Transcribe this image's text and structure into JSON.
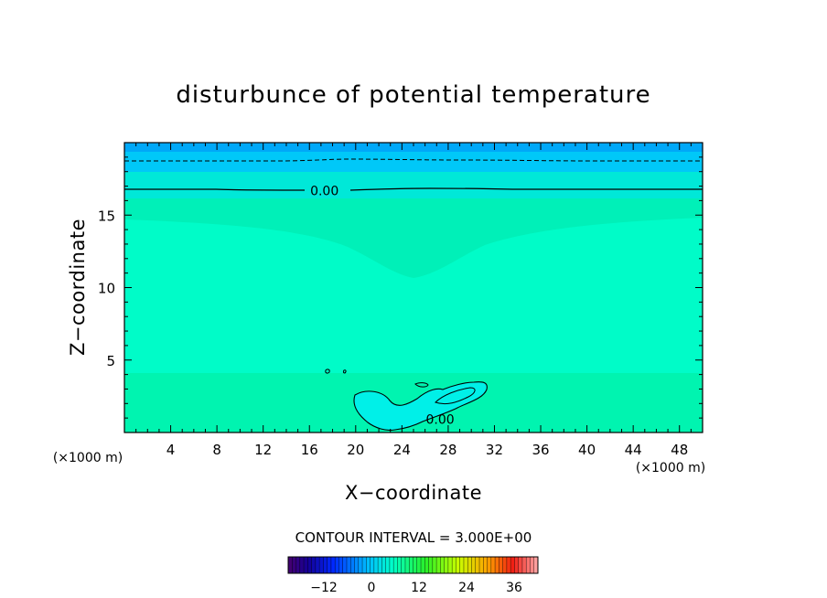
{
  "chart_data": {
    "type": "contour",
    "title": "disturbunce of potential temperature",
    "xlabel": "X−coordinate",
    "ylabel": "Z−coordinate",
    "x_unit_left": "(×1000 m)",
    "x_unit_right": "(×1000 m)",
    "xlim": [
      0,
      50
    ],
    "ylim": [
      0,
      20
    ],
    "x_ticks": [
      4,
      8,
      12,
      16,
      20,
      24,
      28,
      32,
      36,
      40,
      44,
      48
    ],
    "y_ticks": [
      5,
      10,
      15
    ],
    "contour_interval_text": "CONTOUR INTERVAL = 3.000E+00",
    "contour_labels": [
      {
        "text": "0.00",
        "x": 17.3,
        "z": 16.7
      },
      {
        "text": "0.00",
        "x": 27.3,
        "z": 0.9
      }
    ],
    "colorbar": {
      "min": -21,
      "max": 42,
      "ticks": [
        -12,
        0,
        12,
        24,
        36
      ],
      "tick_labels": [
        "−12",
        "0",
        "12",
        "24",
        "36"
      ]
    },
    "colors": {
      "top_band": "#00a8f8",
      "upper_band": "#00c8f8",
      "transition_band": "#00e8d8",
      "background_field": "#00fcc8",
      "upper_trough": "#00f0b8",
      "lower_field": "#00f4b0",
      "anomaly_blob": "#00f0e8"
    }
  }
}
